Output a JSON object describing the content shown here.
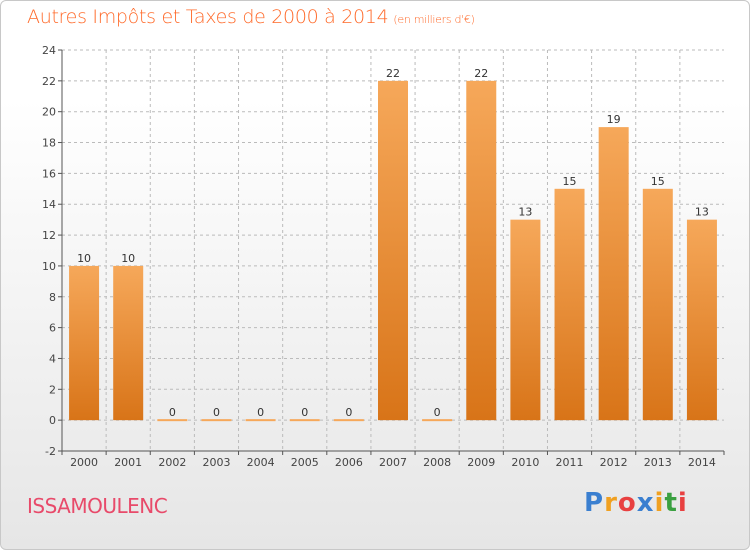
{
  "title": "Autres Impôts et Taxes de 2000 à 2014",
  "subtitle": "(en milliers d'€)",
  "place": "ISSAMOULENC",
  "logo": {
    "letters": [
      "P",
      "r",
      "o",
      "x",
      "i",
      "t",
      "i"
    ],
    "colors": [
      "#3a7fd0",
      "#f0a020",
      "#e84040",
      "#3a7fd0",
      "#f0a020",
      "#3aa040",
      "#e84040"
    ]
  },
  "colors": {
    "bar_top": "#f6a85a",
    "bar_bottom": "#d87418",
    "axis": "#555555",
    "grid": "#bbbbbb",
    "title": "#ff6a2a"
  },
  "chart_data": {
    "type": "bar",
    "categories": [
      "2000",
      "2001",
      "2002",
      "2003",
      "2004",
      "2005",
      "2006",
      "2007",
      "2008",
      "2009",
      "2010",
      "2011",
      "2012",
      "2013",
      "2014"
    ],
    "values": [
      10,
      10,
      0,
      0,
      0,
      0,
      0,
      22,
      0,
      22,
      13,
      15,
      19,
      15,
      13
    ],
    "labels": [
      "10",
      "10",
      "0",
      "0",
      "0",
      "0",
      "0",
      "22",
      "0",
      "22",
      "13",
      "15",
      "19",
      "15",
      "13"
    ],
    "ylim": [
      -2,
      24
    ],
    "yticks": [
      "-2",
      "0",
      "2",
      "4",
      "6",
      "8",
      "10",
      "12",
      "14",
      "16",
      "18",
      "20",
      "22",
      "24"
    ],
    "grid": true
  }
}
